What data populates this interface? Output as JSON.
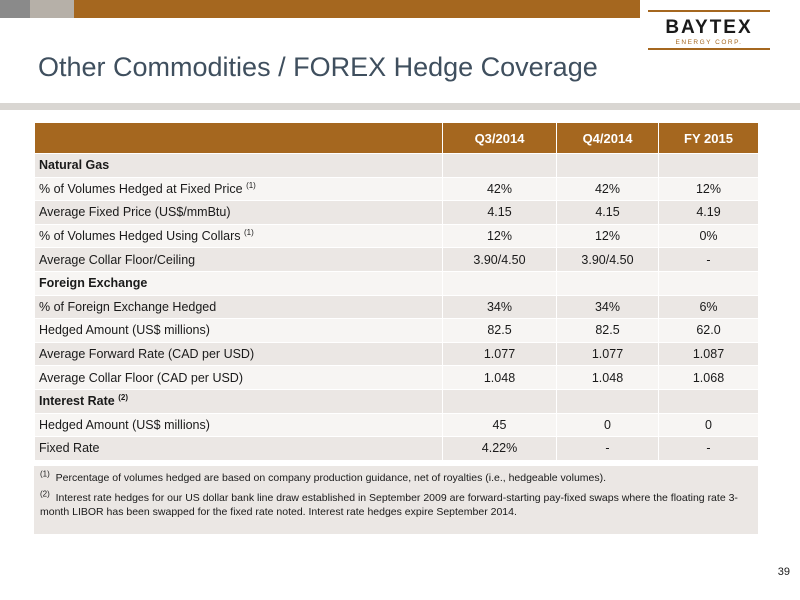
{
  "brand": {
    "name": "BAYTEX",
    "sub": "ENERGY CORP."
  },
  "colors": {
    "accent": "#a5671f",
    "title": "#3f4f5e",
    "row": "#ebe7e4",
    "row_alt": "#f7f5f3"
  },
  "title": "Other Commodities / FOREX Hedge Coverage",
  "table": {
    "headers": [
      "",
      "Q3/2014",
      "Q4/2014",
      "FY 2015"
    ],
    "rows": [
      {
        "label": "Natural Gas",
        "section": true,
        "values": [
          "",
          "",
          ""
        ]
      },
      {
        "label": "% of Volumes Hedged at Fixed Price",
        "sup": "(1)",
        "values": [
          "42%",
          "42%",
          "12%"
        ]
      },
      {
        "label": "Average Fixed Price (US$/mmBtu)",
        "values": [
          "4.15",
          "4.15",
          "4.19"
        ]
      },
      {
        "label": "% of Volumes Hedged Using Collars",
        "sup": "(1)",
        "values": [
          "12%",
          "12%",
          "0%"
        ]
      },
      {
        "label": "Average Collar Floor/Ceiling",
        "values": [
          "3.90/4.50",
          "3.90/4.50",
          "-"
        ]
      },
      {
        "label": "Foreign Exchange",
        "section": true,
        "values": [
          "",
          "",
          ""
        ]
      },
      {
        "label": "% of Foreign Exchange Hedged",
        "values": [
          "34%",
          "34%",
          "6%"
        ]
      },
      {
        "label": "Hedged Amount (US$ millions)",
        "values": [
          "82.5",
          "82.5",
          "62.0"
        ]
      },
      {
        "label": "Average Forward Rate (CAD per USD)",
        "values": [
          "1.077",
          "1.077",
          "1.087"
        ]
      },
      {
        "label": "Average Collar Floor (CAD per USD)",
        "values": [
          "1.048",
          "1.048",
          "1.068"
        ]
      },
      {
        "label": "Interest Rate",
        "sup": "(2)",
        "section": true,
        "values": [
          "",
          "",
          ""
        ]
      },
      {
        "label": "Hedged Amount (US$ millions)",
        "values": [
          "45",
          "0",
          "0"
        ]
      },
      {
        "label": "Fixed Rate",
        "values": [
          "4.22%",
          "-",
          "-"
        ]
      }
    ]
  },
  "footnotes": [
    {
      "marker": "(1)",
      "text": "Percentage of volumes hedged are based on company production guidance, net of royalties (i.e., hedgeable volumes)."
    },
    {
      "marker": "(2)",
      "text": "Interest rate hedges for our US dollar bank line draw established in September 2009 are forward-starting pay-fixed swaps where the floating rate 3-month LIBOR has been swapped for the fixed rate noted. Interest rate hedges expire September 2014."
    }
  ],
  "page_number": "39"
}
